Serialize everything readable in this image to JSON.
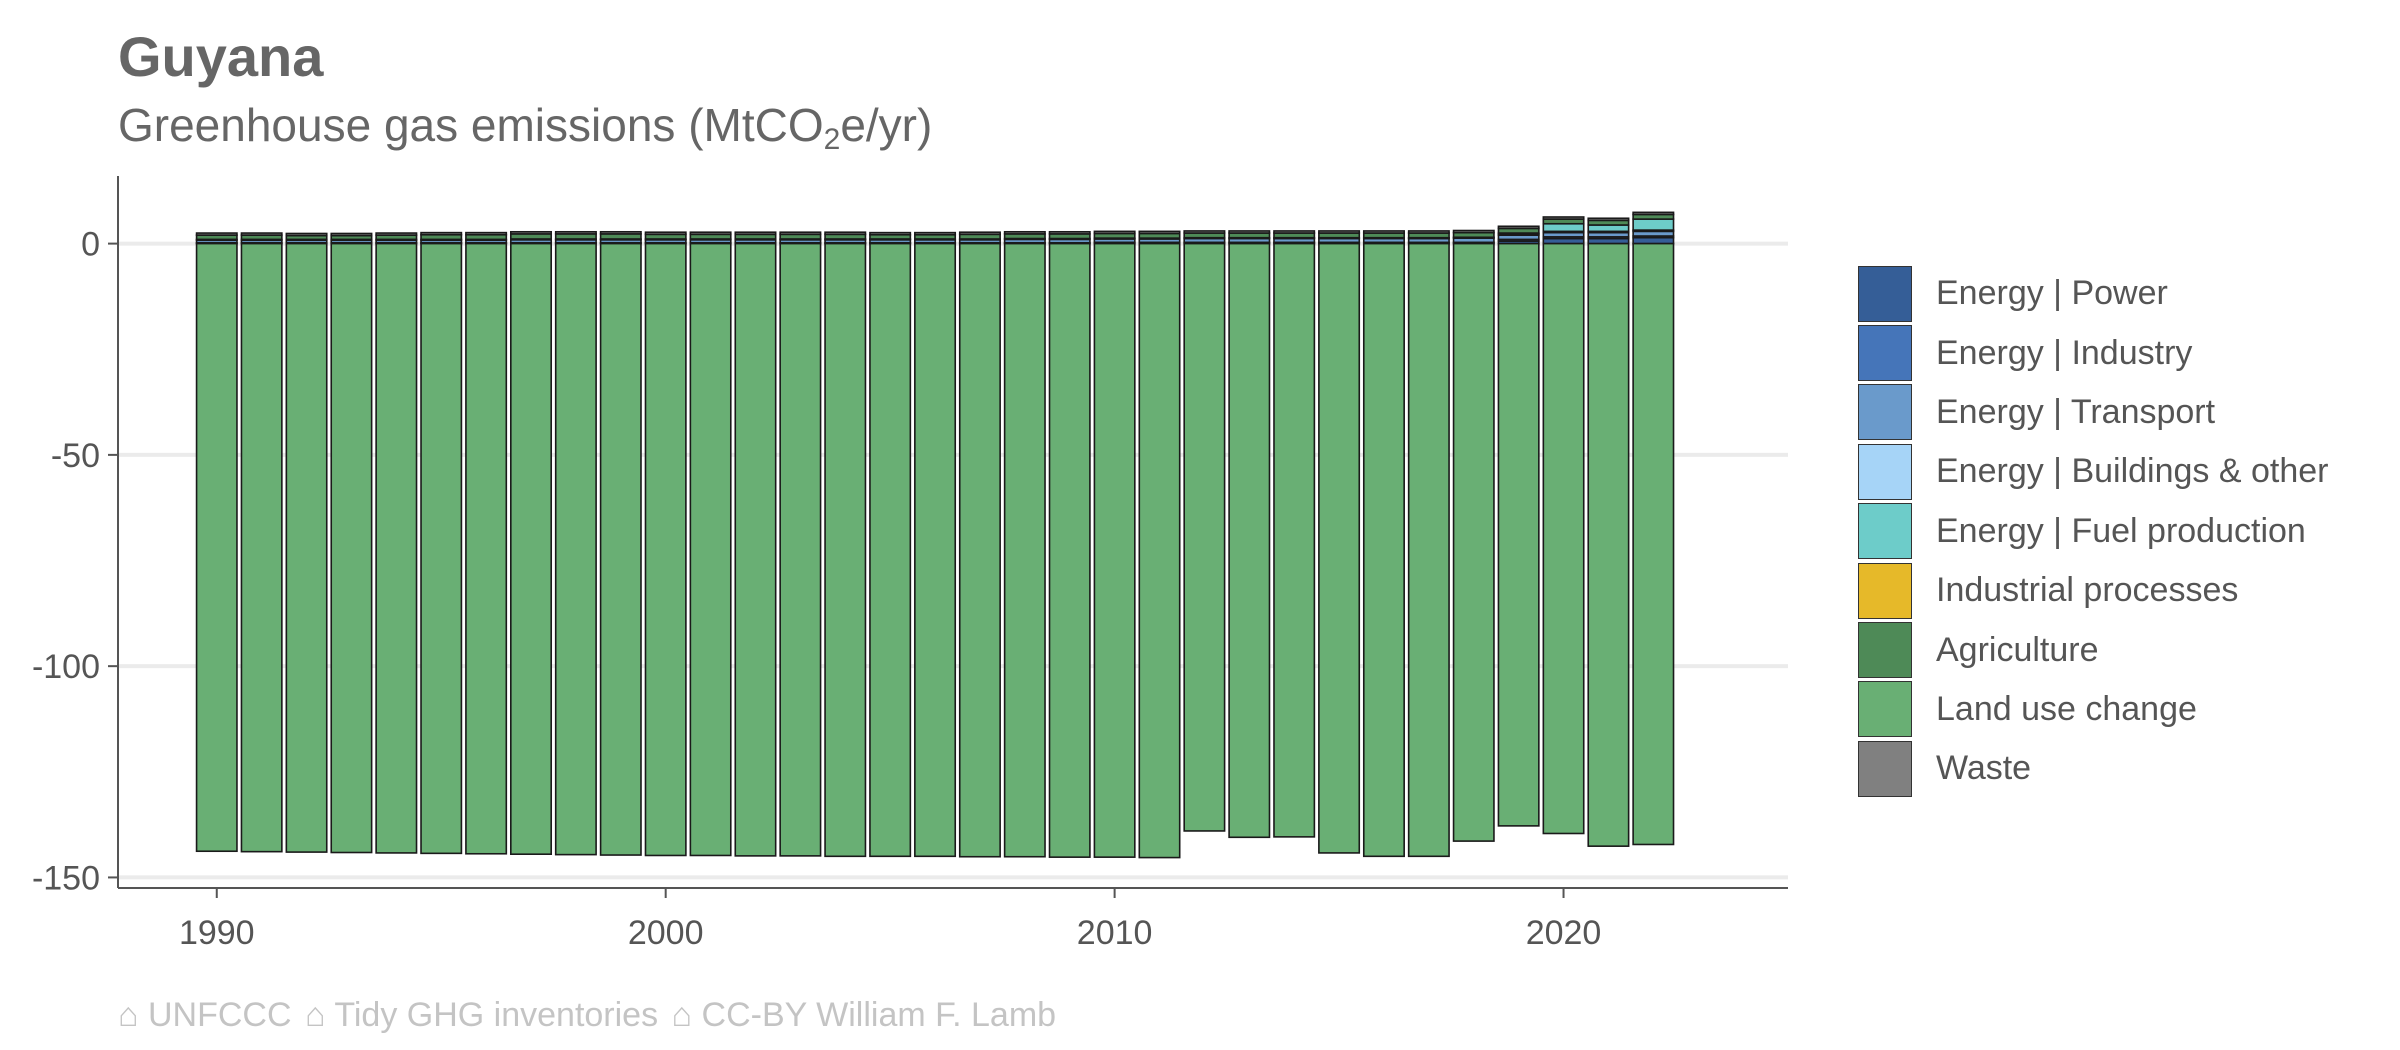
{
  "header": {
    "title": "Guyana",
    "subtitle_main": "Greenhouse gas emissions (MtCO",
    "subtitle_sub": "2",
    "subtitle_tail": "e/yr)"
  },
  "caption": {
    "parts": [
      "⌂ UNFCCC",
      "⌂ Tidy GHG inventories",
      "⌂ CC-BY William F. Lamb"
    ]
  },
  "colors": {
    "background": "#ffffff",
    "grid": "#ebebeb",
    "axis": "#555555",
    "bar_outline": "#1a1a1a"
  },
  "chart_data": {
    "type": "bar",
    "stacked": true,
    "x": [
      1990,
      1991,
      1992,
      1993,
      1994,
      1995,
      1996,
      1997,
      1998,
      1999,
      2000,
      2001,
      2002,
      2003,
      2004,
      2005,
      2006,
      2007,
      2008,
      2009,
      2010,
      2011,
      2012,
      2013,
      2014,
      2015,
      2016,
      2017,
      2018,
      2019,
      2020,
      2021,
      2022
    ],
    "xticks": [
      1990,
      2000,
      2010,
      2020
    ],
    "xlim": [
      1987.8,
      2025.0
    ],
    "yticks": [
      0,
      -50,
      -100,
      -150
    ],
    "ylim": [
      -152.5,
      16
    ],
    "grid": true,
    "legend_position": "right",
    "series": [
      {
        "name": "Energy | Power",
        "color": "#355E97",
        "values": [
          0,
          0,
          0,
          0,
          0,
          0,
          0,
          0,
          0,
          0,
          0,
          0,
          0,
          0,
          0,
          0,
          0,
          0,
          0,
          0,
          0,
          0,
          0,
          0,
          0,
          0,
          0,
          0,
          0,
          0.6,
          1.2,
          1.2,
          1.4
        ]
      },
      {
        "name": "Energy | Industry",
        "color": "#4575B9",
        "values": [
          0.2,
          0.2,
          0.2,
          0.2,
          0.2,
          0.2,
          0.2,
          0.2,
          0.2,
          0.2,
          0.2,
          0.2,
          0.2,
          0.2,
          0.2,
          0.2,
          0.2,
          0.2,
          0.2,
          0.2,
          0.3,
          0.3,
          0.3,
          0.3,
          0.3,
          0.3,
          0.3,
          0.3,
          0.3,
          0.4,
          0.4,
          0.4,
          0.4
        ]
      },
      {
        "name": "Energy | Transport",
        "color": "#6A9ACB",
        "values": [
          0.6,
          0.6,
          0.6,
          0.6,
          0.6,
          0.6,
          0.6,
          0.7,
          0.7,
          0.7,
          0.7,
          0.7,
          0.7,
          0.7,
          0.7,
          0.7,
          0.7,
          0.7,
          0.8,
          0.8,
          0.8,
          0.8,
          0.9,
          0.9,
          0.9,
          0.9,
          0.9,
          0.9,
          1.0,
          1.0,
          1.0,
          1.0,
          1.1
        ]
      },
      {
        "name": "Energy | Buildings & other",
        "color": "#A6D4F7",
        "values": [
          0.2,
          0.2,
          0.2,
          0.2,
          0.2,
          0.2,
          0.2,
          0.2,
          0.2,
          0.2,
          0.2,
          0.2,
          0.2,
          0.2,
          0.2,
          0.2,
          0.2,
          0.2,
          0.2,
          0.2,
          0.2,
          0.2,
          0.2,
          0.2,
          0.2,
          0.2,
          0.2,
          0.2,
          0.2,
          0.3,
          0.3,
          0.3,
          0.3
        ]
      },
      {
        "name": "Energy | Fuel production",
        "color": "#6DCCC9",
        "values": [
          0,
          0,
          0,
          0,
          0,
          0,
          0,
          0,
          0,
          0,
          0,
          0,
          0,
          0,
          0,
          0,
          0,
          0,
          0,
          0,
          0,
          0,
          0,
          0,
          0,
          0,
          0,
          0,
          0,
          0.2,
          1.8,
          1.5,
          2.6
        ]
      },
      {
        "name": "Industrial processes",
        "color": "#E6B929",
        "values": [
          0,
          0,
          0,
          0,
          0,
          0,
          0,
          0,
          0,
          0,
          0,
          0,
          0,
          0,
          0,
          0,
          0,
          0,
          0,
          0,
          0,
          0,
          0,
          0,
          0,
          0,
          0,
          0,
          0,
          0,
          0,
          0,
          0
        ]
      },
      {
        "name": "Agriculture",
        "color": "#4E8A57",
        "values": [
          1.0,
          1.0,
          0.9,
          0.9,
          1.0,
          1.1,
          1.1,
          1.2,
          1.2,
          1.2,
          1.1,
          1.1,
          1.1,
          1.1,
          1.1,
          1.0,
          1.0,
          1.1,
          1.1,
          1.1,
          1.1,
          1.1,
          1.1,
          1.1,
          1.1,
          1.1,
          1.1,
          1.1,
          1.1,
          1.1,
          1.1,
          1.1,
          1.1
        ]
      },
      {
        "name": "Land use change",
        "color": "#69AF74",
        "values": [
          -143.8,
          -143.9,
          -144.0,
          -144.1,
          -144.2,
          -144.3,
          -144.4,
          -144.5,
          -144.6,
          -144.7,
          -144.8,
          -144.8,
          -144.9,
          -144.9,
          -145.0,
          -145.0,
          -145.0,
          -145.1,
          -145.1,
          -145.2,
          -145.2,
          -145.3,
          -139.0,
          -140.5,
          -140.4,
          -144.2,
          -145.0,
          -145.0,
          -141.4,
          -137.8,
          -139.6,
          -142.6,
          -142.2
        ]
      },
      {
        "name": "Waste",
        "color": "#808080",
        "values": [
          0.5,
          0.5,
          0.5,
          0.5,
          0.5,
          0.5,
          0.5,
          0.5,
          0.5,
          0.5,
          0.5,
          0.5,
          0.5,
          0.5,
          0.5,
          0.5,
          0.5,
          0.5,
          0.5,
          0.5,
          0.5,
          0.5,
          0.5,
          0.5,
          0.5,
          0.5,
          0.5,
          0.5,
          0.5,
          0.5,
          0.5,
          0.5,
          0.5
        ]
      }
    ]
  }
}
